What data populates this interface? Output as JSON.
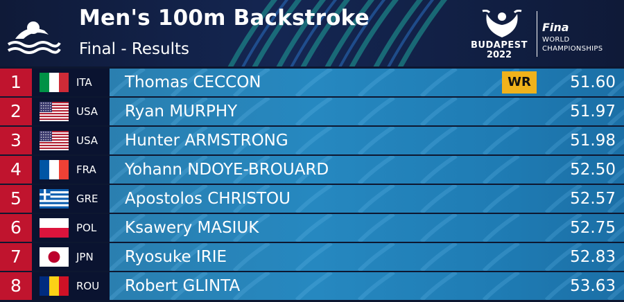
{
  "event": {
    "title": "Men's 100m Backstroke",
    "subtitle": "Final - Results"
  },
  "branding": {
    "city": "BUDAPEST",
    "year": "2022",
    "org": "Fina",
    "line1": "WORLD",
    "line2": "CHAMPIONSHIPS",
    "icons": [
      "swimmer-icon",
      "budapest-logo-icon"
    ]
  },
  "colors": {
    "rank_bg": "#c0142e",
    "bar_bg": "#2688c0",
    "record_badge": "#f0b21b"
  },
  "results": [
    {
      "rank": "1",
      "country": "ITA",
      "flag": "italy-flag",
      "name": "Thomas CECCON",
      "time": "51.60",
      "record": "WR"
    },
    {
      "rank": "2",
      "country": "USA",
      "flag": "usa-flag",
      "name": "Ryan MURPHY",
      "time": "51.97",
      "record": ""
    },
    {
      "rank": "3",
      "country": "USA",
      "flag": "usa-flag",
      "name": "Hunter ARMSTRONG",
      "time": "51.98",
      "record": ""
    },
    {
      "rank": "4",
      "country": "FRA",
      "flag": "france-flag",
      "name": "Yohann NDOYE-BROUARD",
      "time": "52.50",
      "record": ""
    },
    {
      "rank": "5",
      "country": "GRE",
      "flag": "greece-flag",
      "name": "Apostolos CHRISTOU",
      "time": "52.57",
      "record": ""
    },
    {
      "rank": "6",
      "country": "POL",
      "flag": "poland-flag",
      "name": "Ksawery MASIUK",
      "time": "52.75",
      "record": ""
    },
    {
      "rank": "7",
      "country": "JPN",
      "flag": "japan-flag",
      "name": "Ryosuke IRIE",
      "time": "52.83",
      "record": ""
    },
    {
      "rank": "8",
      "country": "ROU",
      "flag": "romania-flag",
      "name": "Robert GLINTA",
      "time": "53.63",
      "record": ""
    }
  ]
}
